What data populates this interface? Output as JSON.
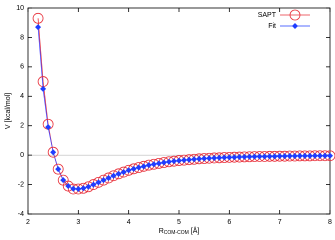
{
  "chart_data": {
    "type": "line",
    "y_label": "V [kcal/mol]",
    "x_label": "R",
    "x_label_subscript": "COM-COM",
    "x_label_unit": "[Å]",
    "x": [
      2.2,
      2.3,
      2.4,
      2.5,
      2.6,
      2.7,
      2.8,
      2.9,
      3.0,
      3.1,
      3.2,
      3.3,
      3.4,
      3.5,
      3.6,
      3.7,
      3.8,
      3.9,
      4.0,
      4.1,
      4.2,
      4.3,
      4.4,
      4.5,
      4.6,
      4.7,
      4.8,
      4.9,
      5.0,
      5.1,
      5.2,
      5.3,
      5.4,
      5.5,
      5.6,
      5.7,
      5.8,
      5.9,
      6.0,
      6.1,
      6.2,
      6.3,
      6.4,
      6.5,
      6.6,
      6.7,
      6.8,
      6.9,
      7.0,
      7.1,
      7.2,
      7.3,
      7.4,
      7.5,
      7.6,
      7.7,
      7.8,
      7.9,
      8.0
    ],
    "series": [
      {
        "name": "SAPT",
        "color": "#e8303a",
        "marker": "circle",
        "values": [
          9.3,
          5.0,
          2.1,
          0.2,
          -0.95,
          -1.7,
          -2.1,
          -2.3,
          -2.3,
          -2.25,
          -2.15,
          -2.0,
          -1.85,
          -1.7,
          -1.55,
          -1.4,
          -1.27,
          -1.15,
          -1.03,
          -0.93,
          -0.84,
          -0.76,
          -0.68,
          -0.62,
          -0.56,
          -0.5,
          -0.45,
          -0.41,
          -0.37,
          -0.34,
          -0.31,
          -0.28,
          -0.25,
          -0.23,
          -0.21,
          -0.19,
          -0.18,
          -0.16,
          -0.15,
          -0.14,
          -0.13,
          -0.12,
          -0.11,
          -0.1,
          -0.09,
          -0.09,
          -0.08,
          -0.08,
          -0.07,
          -0.07,
          -0.06,
          -0.06,
          -0.05,
          -0.05,
          -0.05,
          -0.04,
          -0.04,
          -0.04,
          -0.04
        ]
      },
      {
        "name": "Fit",
        "color": "#1f3dff",
        "marker": "diamond",
        "values": [
          8.7,
          4.5,
          1.9,
          0.2,
          -0.95,
          -1.7,
          -2.1,
          -2.28,
          -2.3,
          -2.25,
          -2.15,
          -2.0,
          -1.85,
          -1.7,
          -1.55,
          -1.4,
          -1.27,
          -1.15,
          -1.03,
          -0.93,
          -0.84,
          -0.76,
          -0.68,
          -0.62,
          -0.56,
          -0.5,
          -0.45,
          -0.41,
          -0.37,
          -0.34,
          -0.31,
          -0.28,
          -0.25,
          -0.23,
          -0.21,
          -0.19,
          -0.18,
          -0.16,
          -0.15,
          -0.14,
          -0.13,
          -0.12,
          -0.11,
          -0.1,
          -0.09,
          -0.09,
          -0.08,
          -0.08,
          -0.07,
          -0.07,
          -0.06,
          -0.06,
          -0.05,
          -0.05,
          -0.05,
          -0.04,
          -0.04,
          -0.04,
          -0.04
        ]
      }
    ],
    "xlim": [
      2,
      8
    ],
    "xticks": [
      2,
      3,
      4,
      5,
      6,
      7,
      8
    ],
    "ylim": [
      -4,
      10
    ],
    "yticks": [
      -4,
      -2,
      0,
      2,
      4,
      6,
      8,
      10
    ],
    "legend": "top-right"
  }
}
